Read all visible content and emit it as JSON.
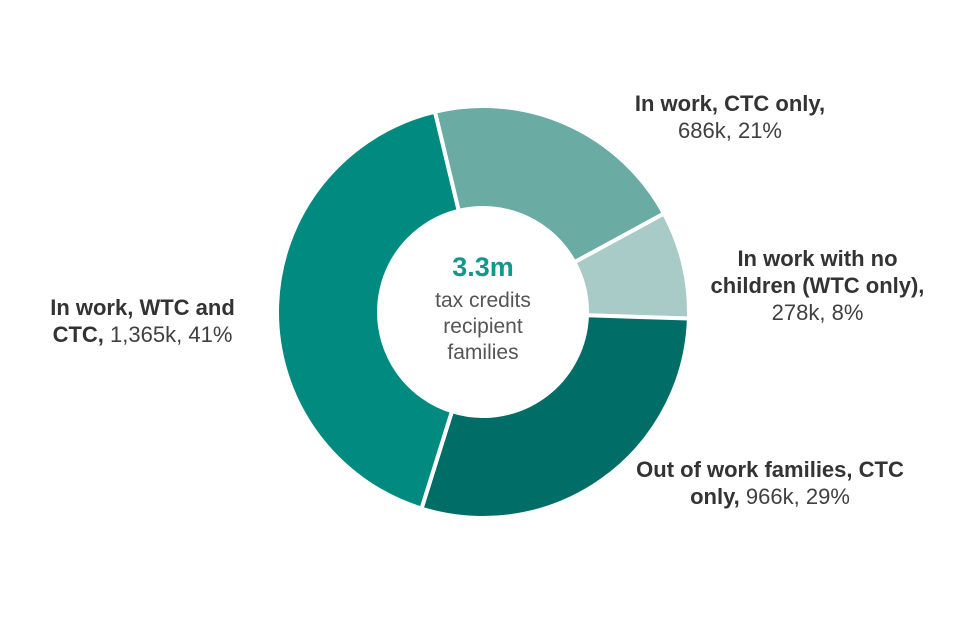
{
  "chart_data": {
    "type": "donut",
    "center_value": "3.3m",
    "center_text": "tax credits recipient families",
    "categories": [
      "In work, CTC only,",
      "In work with no children (WTC only),",
      "Out of work families,  CTC only,",
      "In work, WTC and CTC,"
    ],
    "values": [
      686,
      278,
      966,
      1365
    ],
    "value_labels": [
      "686k,",
      "278k,",
      "966k,",
      "1,365k,"
    ],
    "percent_labels": [
      "21%",
      "8%",
      "29%",
      "41%"
    ],
    "colors": [
      "#6aaba3",
      "#a9cbc7",
      "#006e66",
      "#008a80"
    ]
  }
}
